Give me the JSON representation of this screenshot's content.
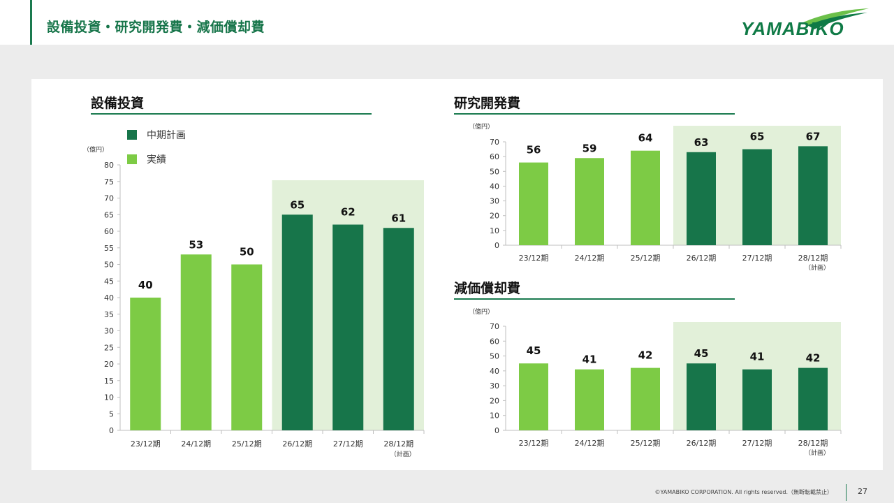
{
  "header": {
    "title": "設備投資・研究開発費・減価償却費",
    "logo_text": "YAMABIKO"
  },
  "legend": {
    "plan_label": "中期計画",
    "actual_label": "実績"
  },
  "colors": {
    "plan": "#17754a",
    "actual": "#7dcb45",
    "plan_band": "#e2f0d9",
    "accent": "#1a7a4f"
  },
  "unit_label": "（億円）",
  "plan_note": "（計画）",
  "chart_data": [
    {
      "id": "capex",
      "type": "bar",
      "title": "設備投資",
      "ylabel": "（億円）",
      "categories": [
        "23/12期",
        "24/12期",
        "25/12期",
        "26/12期",
        "27/12期",
        "28/12期"
      ],
      "values": [
        40,
        53,
        50,
        65,
        62,
        61
      ],
      "kind": [
        "actual",
        "actual",
        "actual",
        "plan",
        "plan",
        "plan"
      ],
      "ylim": [
        0,
        80
      ],
      "yticks": [
        0,
        5,
        10,
        15,
        20,
        25,
        30,
        35,
        40,
        45,
        50,
        55,
        60,
        65,
        70,
        75,
        80
      ],
      "last_category_note": "（計画）"
    },
    {
      "id": "rnd",
      "type": "bar",
      "title": "研究開発費",
      "ylabel": "（億円）",
      "categories": [
        "23/12期",
        "24/12期",
        "25/12期",
        "26/12期",
        "27/12期",
        "28/12期"
      ],
      "values": [
        56,
        59,
        64,
        63,
        65,
        67
      ],
      "kind": [
        "actual",
        "actual",
        "actual",
        "plan",
        "plan",
        "plan"
      ],
      "ylim": [
        0,
        70
      ],
      "yticks": [
        0,
        10,
        20,
        30,
        40,
        50,
        60,
        70
      ],
      "last_category_note": "（計画）"
    },
    {
      "id": "depr",
      "type": "bar",
      "title": "減価償却費",
      "ylabel": "（億円）",
      "categories": [
        "23/12期",
        "24/12期",
        "25/12期",
        "26/12期",
        "27/12期",
        "28/12期"
      ],
      "values": [
        45,
        41,
        42,
        45,
        41,
        42
      ],
      "kind": [
        "actual",
        "actual",
        "actual",
        "plan",
        "plan",
        "plan"
      ],
      "ylim": [
        0,
        70
      ],
      "yticks": [
        0,
        10,
        20,
        30,
        40,
        50,
        60,
        70
      ],
      "last_category_note": "（計画）"
    }
  ],
  "footer": {
    "copyright": "©YAMABIKO CORPORATION. All rights reserved.（無断転載禁止）",
    "page_number": "27"
  }
}
